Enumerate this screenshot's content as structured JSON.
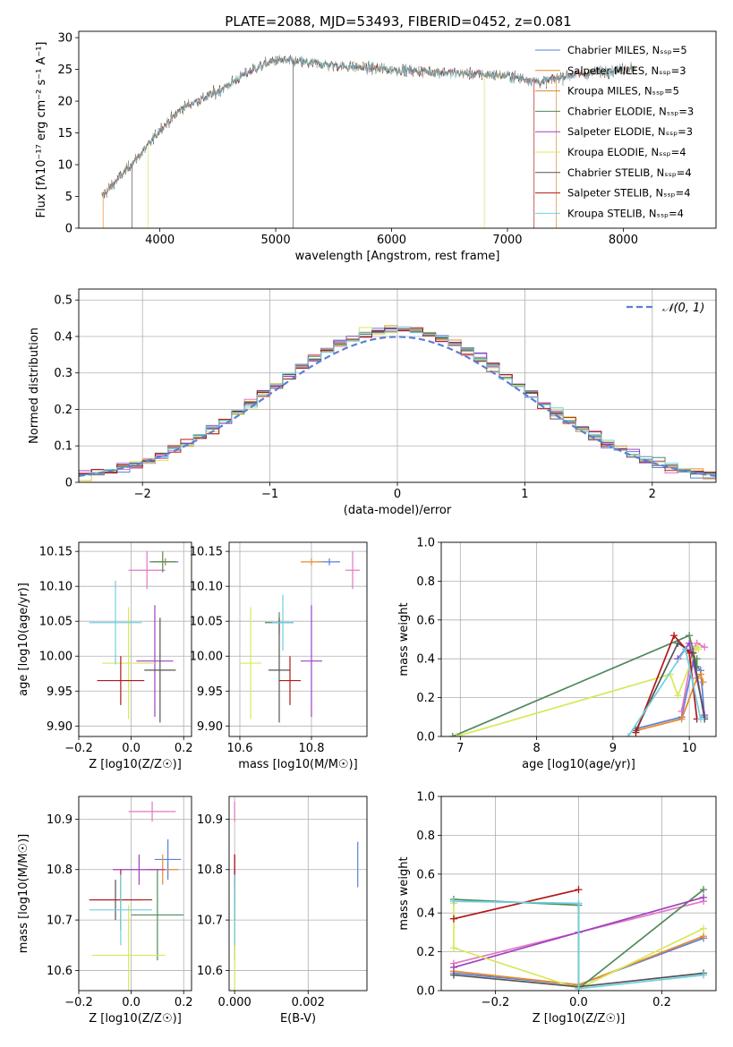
{
  "chart_data": [
    {
      "type": "line",
      "id": "spectrum",
      "title": "PLATE=2088, MJD=53493, FIBERID=0452, z=0.081",
      "xlabel": "wavelength [Angstrom, rest frame]",
      "ylabel": "Flux [fλ10⁻¹⁷ erg cm⁻² s⁻¹ A⁻¹]",
      "xlim": [
        3300,
        8800
      ],
      "ylim": [
        0,
        31
      ],
      "xticks": [
        4000,
        5000,
        6000,
        7000,
        8000
      ],
      "yticks": [
        0,
        5,
        10,
        15,
        20,
        25,
        30
      ],
      "grid": false,
      "legend_position": "right",
      "data_x_range": [
        3500,
        8100
      ],
      "legend": [
        {
          "label": "Chabrier MILES, N_SSP=5",
          "color": "#5a7fd6"
        },
        {
          "label": "Salpeter MILES, N_SSP=3",
          "color": "#e68a2e"
        },
        {
          "label": "Kroupa MILES, N_SSP=5",
          "color": "#d98c3a"
        },
        {
          "label": "Chabrier ELODIE, N_SSP=3",
          "color": "#4f8a5a"
        },
        {
          "label": "Salpeter ELODIE, N_SSP=3",
          "color": "#a040c0"
        },
        {
          "label": "Kroupa ELODIE, N_SSP=4",
          "color": "#d8e85a"
        },
        {
          "label": "Chabrier STELIB, N_SSP=4",
          "color": "#555555"
        },
        {
          "label": "Salpeter STELIB, N_SSP=4",
          "color": "#b01818"
        },
        {
          "label": "Kroupa STELIB, N_SSP=4",
          "color": "#6fd0e0"
        }
      ],
      "continuum_knots": [
        [
          3500,
          5
        ],
        [
          3700,
          9
        ],
        [
          3900,
          13
        ],
        [
          4000,
          15.5
        ],
        [
          4200,
          19
        ],
        [
          4500,
          21.5
        ],
        [
          4800,
          25
        ],
        [
          5000,
          26.5
        ],
        [
          5300,
          26
        ],
        [
          5600,
          25.5
        ],
        [
          6000,
          25
        ],
        [
          6500,
          24.5
        ],
        [
          7000,
          24
        ],
        [
          7300,
          23
        ],
        [
          7500,
          24
        ],
        [
          8000,
          25
        ],
        [
          8100,
          25.5
        ]
      ]
    },
    {
      "type": "line",
      "id": "residuals",
      "xlabel": "(data-model)/error",
      "ylabel": "Normed distribution",
      "xlim": [
        -2.5,
        2.5
      ],
      "ylim": [
        0,
        0.53
      ],
      "xticks": [
        -2,
        -1,
        0,
        1,
        2
      ],
      "yticks": [
        0.0,
        0.1,
        0.2,
        0.3,
        0.4,
        0.5
      ],
      "grid": true,
      "legend_position": "top-right",
      "legend_label": "𝒩(0, 1)",
      "legend_color": "#5a7fd6",
      "hist_bin_width": 0.1,
      "hist_colors": [
        "#5a7fd6",
        "#e68a2e",
        "#e377c2",
        "#4f8a5a",
        "#a040c0",
        "#d8e85a",
        "#555555",
        "#b01818",
        "#6fd0e0"
      ]
    },
    {
      "type": "scatter",
      "id": "age-vs-Z",
      "xlabel": "Z [log10(Z/Z☉)]",
      "ylabel": "age  [log10(age/yr)]",
      "xlim": [
        -0.2,
        0.23
      ],
      "ylim": [
        9.885,
        10.163
      ],
      "xticks": [
        "-0.2",
        "0.0",
        "0.2"
      ],
      "yticks": [
        "9.90",
        "9.95",
        "10.00",
        "10.05",
        "10.10",
        "10.15"
      ],
      "grid": true,
      "points": [
        {
          "color": "#5a7fd6",
          "x": 0.13,
          "xerr": 0.05,
          "y": 10.135,
          "yerr": 0.005
        },
        {
          "color": "#e68a2e",
          "x": 0.13,
          "xerr": 0.04,
          "y": 10.135,
          "yerr": 0.005
        },
        {
          "color": "#e377c2",
          "x": 0.06,
          "xerr": 0.07,
          "y": 10.123,
          "yerr": 0.027
        },
        {
          "color": "#4f8a5a",
          "x": 0.12,
          "xerr": 0.05,
          "y": 10.135,
          "yerr": 0.015
        },
        {
          "color": "#a040c0",
          "x": 0.09,
          "xerr": 0.07,
          "y": 9.993,
          "yerr": 0.08
        },
        {
          "color": "#d8e85a",
          "x": -0.01,
          "xerr": 0.1,
          "y": 9.99,
          "yerr": 0.08
        },
        {
          "color": "#555555",
          "x": 0.11,
          "xerr": 0.06,
          "y": 9.98,
          "yerr": 0.075
        },
        {
          "color": "#b01818",
          "x": -0.04,
          "xerr": 0.09,
          "y": 9.965,
          "yerr": 0.035
        },
        {
          "color": "#6fd0e0",
          "x": -0.06,
          "xerr": 0.1,
          "y": 10.048,
          "yerr": 0.06
        }
      ]
    },
    {
      "type": "scatter",
      "id": "age-vs-mass",
      "xlabel": "mass [log10(M/M☉)]",
      "ylabel": "",
      "xlim": [
        10.57,
        10.955
      ],
      "ylim": [
        9.885,
        10.163
      ],
      "xticks": [
        "10.6",
        "10.8"
      ],
      "yticks": [
        "9.90",
        "9.95",
        "10.00",
        "10.05",
        "10.10",
        "10.15"
      ],
      "grid": true,
      "points": [
        {
          "color": "#5a7fd6",
          "x": 10.85,
          "xerr": 0.03,
          "y": 10.135,
          "yerr": 0.005
        },
        {
          "color": "#e68a2e",
          "x": 10.8,
          "xerr": 0.03,
          "y": 10.135,
          "yerr": 0.005
        },
        {
          "color": "#e377c2",
          "x": 10.915,
          "xerr": 0.02,
          "y": 10.123,
          "yerr": 0.027
        },
        {
          "color": "#4f8a5a",
          "x": 10.71,
          "xerr": 0.04,
          "y": 10.048,
          "yerr": 0.015
        },
        {
          "color": "#a040c0",
          "x": 10.8,
          "xerr": 0.03,
          "y": 9.993,
          "yerr": 0.08
        },
        {
          "color": "#d8e85a",
          "x": 10.63,
          "xerr": 0.03,
          "y": 9.99,
          "yerr": 0.08
        },
        {
          "color": "#555555",
          "x": 10.71,
          "xerr": 0.03,
          "y": 9.98,
          "yerr": 0.075
        },
        {
          "color": "#b01818",
          "x": 10.74,
          "xerr": 0.03,
          "y": 9.965,
          "yerr": 0.035
        },
        {
          "color": "#6fd0e0",
          "x": 10.72,
          "xerr": 0.03,
          "y": 10.048,
          "yerr": 0.04
        }
      ]
    },
    {
      "type": "line",
      "id": "weight-vs-age",
      "xlabel": "age  [log10(age/yr)]",
      "ylabel": "mass weight",
      "xlim": [
        6.75,
        10.35
      ],
      "ylim": [
        0,
        1.0
      ],
      "xticks": [
        "7",
        "8",
        "9",
        "10"
      ],
      "yticks": [
        "0.0",
        "0.2",
        "0.4",
        "0.6",
        "0.8",
        "1.0"
      ],
      "grid": true,
      "series": [
        {
          "color": "#5a7fd6",
          "points": [
            [
              9.3,
              0.04
            ],
            [
              9.9,
              0.1
            ],
            [
              10.05,
              0.38
            ],
            [
              10.15,
              0.34
            ],
            [
              10.2,
              0.1
            ]
          ]
        },
        {
          "color": "#e68a2e",
          "points": [
            [
              9.3,
              0.03
            ],
            [
              9.9,
              0.09
            ],
            [
              10.1,
              0.3
            ],
            [
              10.15,
              0.32
            ],
            [
              10.18,
              0.28
            ]
          ]
        },
        {
          "color": "#e377c2",
          "points": [
            [
              9.9,
              0.13
            ],
            [
              10.05,
              0.45
            ],
            [
              10.1,
              0.48
            ],
            [
              10.2,
              0.46
            ]
          ]
        },
        {
          "color": "#4f8a5a",
          "points": [
            [
              6.9,
              0.0
            ],
            [
              10.0,
              0.52
            ],
            [
              10.1,
              0.36
            ],
            [
              10.1,
              0.4
            ]
          ]
        },
        {
          "color": "#a040c0",
          "points": [
            [
              9.85,
              0.4
            ],
            [
              10.0,
              0.48
            ],
            [
              10.2,
              0.11
            ]
          ]
        },
        {
          "color": "#d8e85a",
          "points": [
            [
              6.95,
              0.0
            ],
            [
              9.75,
              0.32
            ],
            [
              9.85,
              0.21
            ],
            [
              10.1,
              0.46
            ],
            [
              10.12,
              0.45
            ]
          ]
        },
        {
          "color": "#555555",
          "points": [
            [
              9.3,
              0.03
            ],
            [
              9.85,
              0.48
            ],
            [
              10.05,
              0.43
            ],
            [
              10.2,
              0.09
            ]
          ]
        },
        {
          "color": "#b01818",
          "points": [
            [
              9.3,
              0.02
            ],
            [
              9.8,
              0.52
            ],
            [
              10.0,
              0.43
            ],
            [
              10.1,
              0.09
            ]
          ]
        },
        {
          "color": "#6fd0e0",
          "points": [
            [
              9.2,
              0.0
            ],
            [
              9.95,
              0.45
            ],
            [
              10.15,
              0.09
            ]
          ]
        }
      ]
    },
    {
      "type": "scatter",
      "id": "mass-vs-Z",
      "xlabel": "Z [log10(Z/Z☉)]",
      "ylabel": "mass [log10(M/M☉)]",
      "xlim": [
        -0.2,
        0.23
      ],
      "ylim": [
        10.56,
        10.945
      ],
      "xticks": [
        "-0.2",
        "0.0",
        "0.2"
      ],
      "yticks": [
        "10.6",
        "10.7",
        "10.8",
        "10.9"
      ],
      "grid": true,
      "points": [
        {
          "color": "#5a7fd6",
          "x": 0.14,
          "xerr": 0.05,
          "y": 10.82,
          "yerr": 0.04
        },
        {
          "color": "#e68a2e",
          "x": 0.12,
          "xerr": 0.06,
          "y": 10.8,
          "yerr": 0.03
        },
        {
          "color": "#e377c2",
          "x": 0.08,
          "xerr": 0.09,
          "y": 10.915,
          "yerr": 0.02
        },
        {
          "color": "#4f8a5a",
          "x": 0.1,
          "xerr": 0.1,
          "y": 10.71,
          "yerr": 0.09
        },
        {
          "color": "#a040c0",
          "x": 0.03,
          "xerr": 0.1,
          "y": 10.8,
          "yerr": 0.03
        },
        {
          "color": "#d8e85a",
          "x": -0.01,
          "xerr": 0.14,
          "y": 10.63,
          "yerr": 0.1
        },
        {
          "color": "#555555",
          "x": -0.06,
          "xerr": 0.1,
          "y": 10.74,
          "yerr": 0.04
        },
        {
          "color": "#b01818",
          "x": -0.04,
          "xerr": 0.12,
          "y": 10.74,
          "yerr": 0.06
        },
        {
          "color": "#6fd0e0",
          "x": -0.04,
          "xerr": 0.12,
          "y": 10.72,
          "yerr": 0.07
        }
      ]
    },
    {
      "type": "scatter",
      "id": "mass-vs-EBV",
      "xlabel": "E(B-V)",
      "ylabel": "",
      "xlim": [
        -0.00015,
        0.0036
      ],
      "ylim": [
        10.56,
        10.945
      ],
      "xticks": [
        "0.000",
        "0.002"
      ],
      "yticks": [
        "10.6",
        "10.7",
        "10.8",
        "10.9"
      ],
      "grid": true,
      "points": [
        {
          "color": "#5a7fd6",
          "x": 0.00335,
          "xerr": 0,
          "y": 10.81,
          "yerr": 0.045
        },
        {
          "color": "#e68a2e",
          "x": 0.0,
          "xerr": 0,
          "y": 10.8,
          "yerr": 0.03
        },
        {
          "color": "#e377c2",
          "x": 0.0,
          "xerr": 0,
          "y": 10.915,
          "yerr": 0.02
        },
        {
          "color": "#4f8a5a",
          "x": 0.0,
          "xerr": 0,
          "y": 10.71,
          "yerr": 0.09
        },
        {
          "color": "#a040c0",
          "x": 0.0,
          "xerr": 0,
          "y": 10.8,
          "yerr": 0.03
        },
        {
          "color": "#d8e85a",
          "x": 0.0,
          "xerr": 0,
          "y": 10.63,
          "yerr": 0.1
        },
        {
          "color": "#555555",
          "x": 0.0,
          "xerr": 0,
          "y": 10.74,
          "yerr": 0.04
        },
        {
          "color": "#b01818",
          "x": 0.0,
          "xerr": 0,
          "y": 10.8,
          "yerr": 0.03
        },
        {
          "color": "#6fd0e0",
          "x": 0.0,
          "xerr": 0,
          "y": 10.72,
          "yerr": 0.07
        }
      ]
    },
    {
      "type": "line",
      "id": "weight-vs-Z",
      "xlabel": "Z [log10(Z/Z☉)]",
      "ylabel": "mass weight",
      "xlim": [
        -0.33,
        0.33
      ],
      "ylim": [
        0,
        1.0
      ],
      "xticks": [
        "-0.2",
        "0.0",
        "0.2"
      ],
      "yticks": [
        "0.0",
        "0.2",
        "0.4",
        "0.6",
        "0.8",
        "1.0"
      ],
      "grid": true,
      "series": [
        {
          "color": "#5a7fd6",
          "points": [
            [
              -0.3,
              0.09
            ],
            [
              0.0,
              0.03
            ],
            [
              0.3,
              0.27
            ]
          ]
        },
        {
          "color": "#e68a2e",
          "points": [
            [
              -0.3,
              0.1
            ],
            [
              0.0,
              0.03
            ],
            [
              0.3,
              0.28
            ]
          ]
        },
        {
          "color": "#e377c2",
          "points": [
            [
              -0.3,
              0.14
            ],
            [
              0.0,
              0.3
            ],
            [
              0.3,
              0.46
            ]
          ]
        },
        {
          "color": "#4f8a5a",
          "points": [
            [
              -0.3,
              0.47
            ],
            [
              0.0,
              0.44
            ],
            [
              0.0,
              0.01
            ],
            [
              0.3,
              0.52
            ]
          ]
        },
        {
          "color": "#a040c0",
          "points": [
            [
              -0.3,
              0.12
            ],
            [
              0.0,
              0.3
            ],
            [
              0.3,
              0.48
            ]
          ]
        },
        {
          "color": "#d8e85a",
          "points": [
            [
              -0.3,
              0.45
            ],
            [
              -0.3,
              0.22
            ],
            [
              0.0,
              0.01
            ],
            [
              0.3,
              0.32
            ]
          ]
        },
        {
          "color": "#555555",
          "points": [
            [
              -0.3,
              0.08
            ],
            [
              0.0,
              0.02
            ],
            [
              0.3,
              0.09
            ]
          ]
        },
        {
          "color": "#b01818",
          "points": [
            [
              -0.3,
              0.37
            ],
            [
              0.0,
              0.52
            ]
          ]
        },
        {
          "color": "#6fd0e0",
          "points": [
            [
              -0.3,
              0.46
            ],
            [
              0.0,
              0.45
            ],
            [
              0.0,
              0.01
            ],
            [
              0.3,
              0.08
            ]
          ]
        }
      ]
    }
  ]
}
